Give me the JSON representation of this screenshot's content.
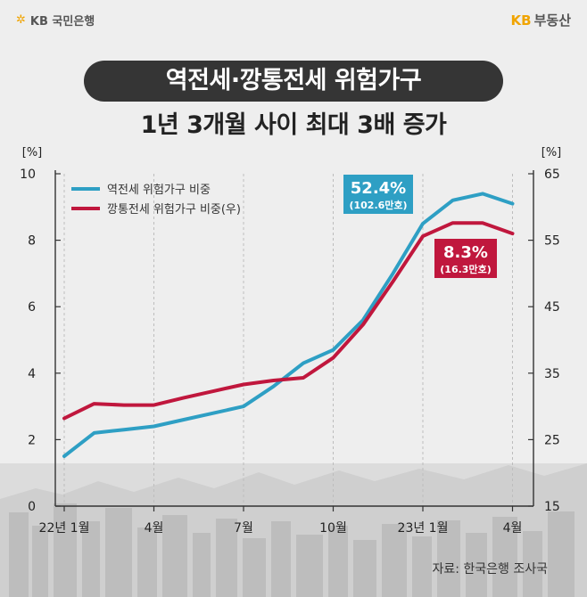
{
  "header": {
    "logo_left": "KB 국민은행",
    "logo_right_kb": "KB",
    "logo_right_text": "부동산"
  },
  "title": {
    "line1": "역전세·깡통전세 위험가구",
    "line2": "1년 3개월 사이 최대 3배 증가"
  },
  "source": "자료: 한국은행 조사국",
  "colors": {
    "series1": "#2e9fc4",
    "series2": "#c0173d",
    "title_bg": "#353535",
    "accent": "#f0a400"
  },
  "chart_data": {
    "type": "line",
    "y_left_unit": "[%]",
    "y_right_unit": "[%]",
    "y_left_ticks": [
      "10",
      "8",
      "6",
      "4",
      "2",
      "0"
    ],
    "y_right_ticks": [
      "65",
      "55",
      "45",
      "35",
      "25",
      "15"
    ],
    "ylim_left": [
      0,
      10
    ],
    "ylim_right": [
      15,
      65
    ],
    "x_ticks": [
      {
        "i": 0,
        "label": "22년 1월"
      },
      {
        "i": 3,
        "label": "4월"
      },
      {
        "i": 6,
        "label": "7월"
      },
      {
        "i": 9,
        "label": "10월"
      },
      {
        "i": 12,
        "label": "23년 1월"
      },
      {
        "i": 15,
        "label": "4월"
      }
    ],
    "xlim": [
      0,
      16
    ],
    "series": [
      {
        "name": "역전세 위험가구 비중",
        "axis": "left",
        "values": [
          1.5,
          2.2,
          2.3,
          2.4,
          2.6,
          2.8,
          3.0,
          3.6,
          4.3,
          4.7,
          5.6,
          7.0,
          8.5,
          9.2,
          9.4,
          9.1
        ]
      },
      {
        "name": "깡통전세 위험가구 비중(우)",
        "axis": "right",
        "values": [
          28.2,
          30.4,
          30.2,
          30.2,
          31.3,
          32.3,
          33.3,
          33.9,
          34.3,
          37.3,
          42.3,
          48.8,
          55.6,
          57.6,
          57.6,
          56.0
        ]
      }
    ],
    "callouts": [
      {
        "series": 0,
        "value": "52.4%",
        "sub": "(102.6만호)"
      },
      {
        "series": 1,
        "value": "8.3%",
        "sub": "(16.3만호)"
      }
    ]
  }
}
